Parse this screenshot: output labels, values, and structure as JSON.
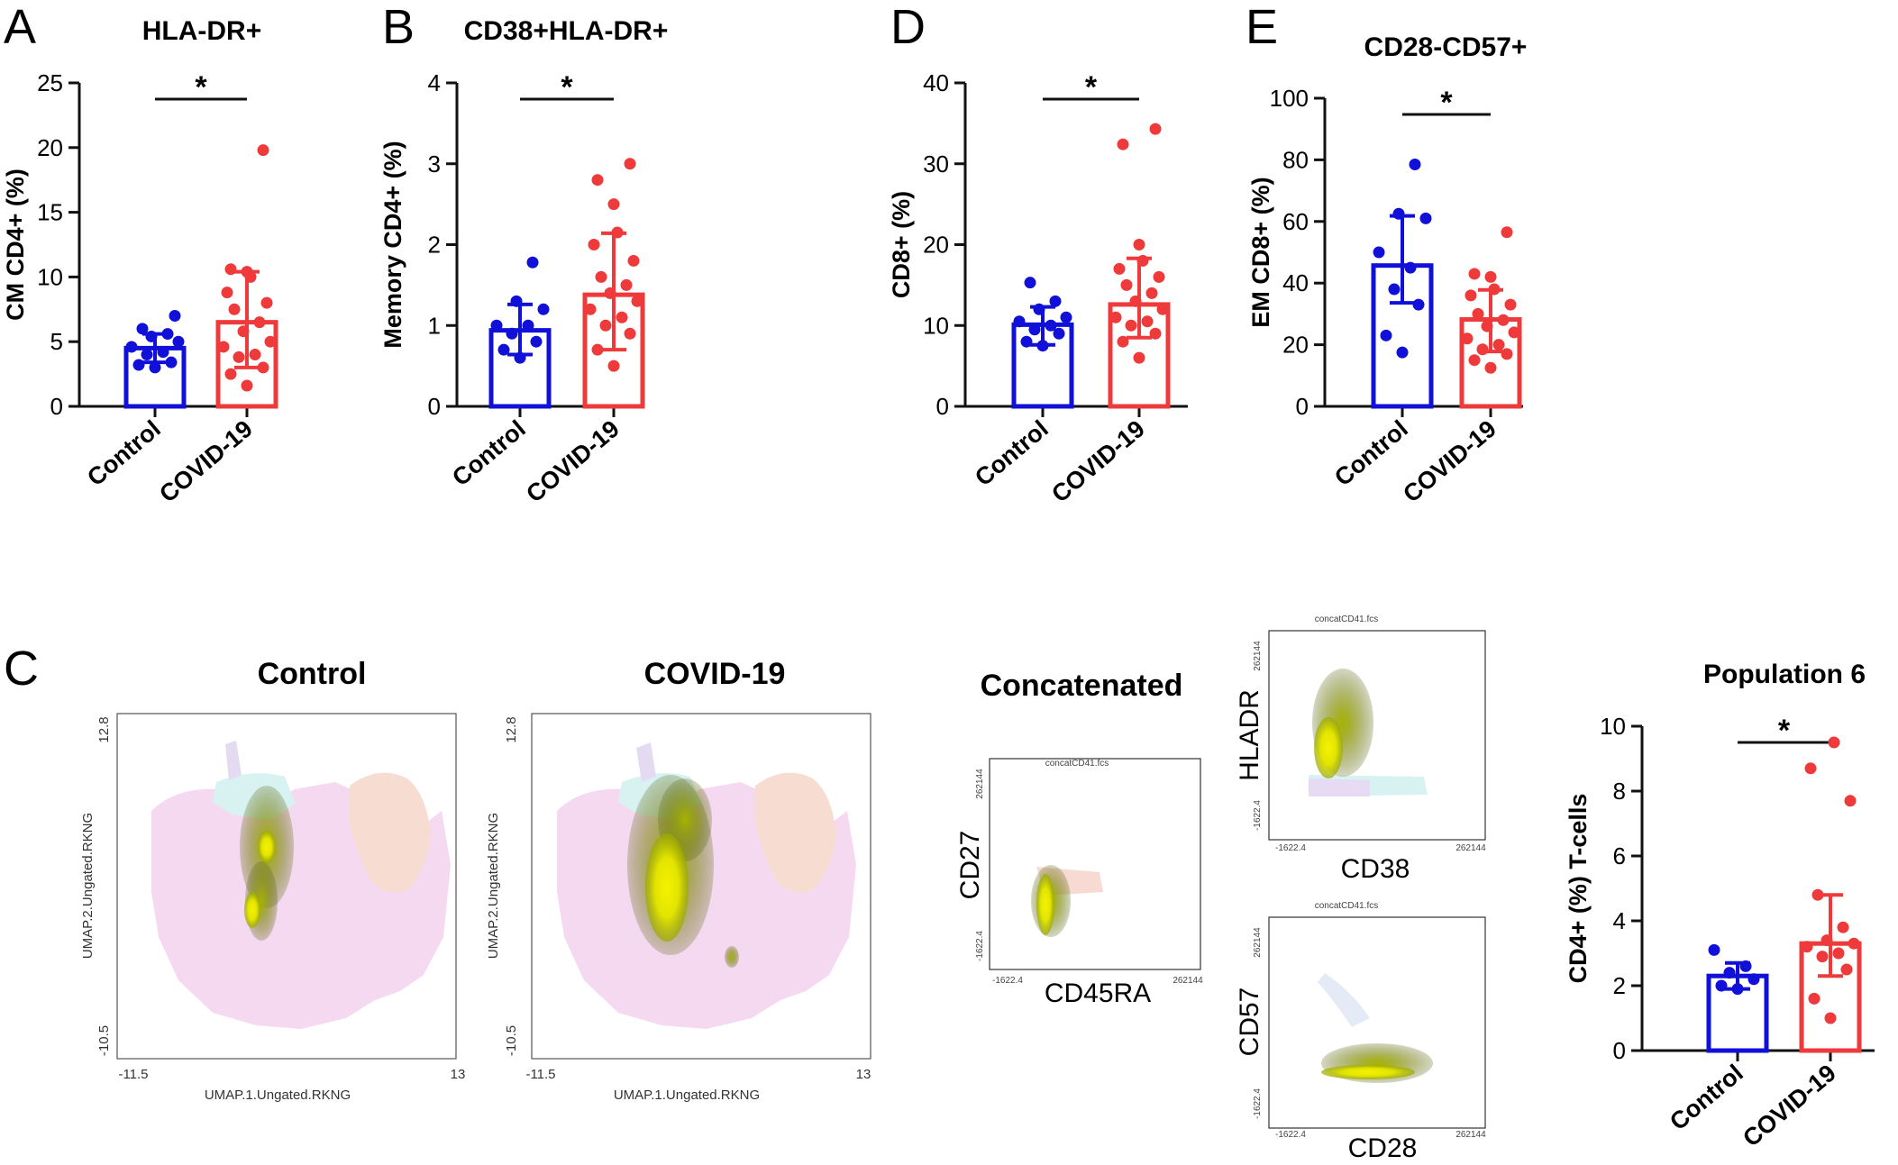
{
  "colors": {
    "control": "#1010d8",
    "covid": "#ee3a3a",
    "axis": "#111111",
    "density_high": "#f4f000",
    "density_mid": "#b6c400",
    "density_low": "#4e5600",
    "bg_pink": "#f4d6ef",
    "bg_peach": "#f6d8cf",
    "bg_cyan": "#d6f2f2",
    "bg_lavender": "#e2d8f2"
  },
  "panel_letters": {
    "A": "A",
    "B": "B",
    "C": "C",
    "D": "D",
    "E": "E"
  },
  "chart_data": [
    {
      "id": "A",
      "type": "bar",
      "title": "HLA-DR+",
      "ylabel": "CM CD4+ (%)",
      "categories": [
        "Control",
        "COVID-19"
      ],
      "ylim": [
        0,
        25
      ],
      "yticks": [
        0,
        5,
        10,
        15,
        20,
        25
      ],
      "significance": "*",
      "series": [
        {
          "name": "Control",
          "mean": 4.5,
          "err": [
            3.4,
            5.6
          ],
          "points": [
            3.0,
            3.2,
            3.4,
            4.0,
            4.2,
            4.6,
            5.0,
            5.4,
            5.6,
            6.0,
            7.0
          ]
        },
        {
          "name": "COVID-19",
          "mean": 6.5,
          "err": [
            3.0,
            10.4
          ],
          "points": [
            1.6,
            2.5,
            3.0,
            3.8,
            4.0,
            4.6,
            5.0,
            5.8,
            6.5,
            7.5,
            8.0,
            8.8,
            10.0,
            10.4,
            10.6,
            19.8
          ]
        }
      ]
    },
    {
      "id": "B",
      "type": "bar",
      "title": "CD38+HLA-DR+",
      "ylabel": "Memory CD4+ (%)",
      "categories": [
        "Control",
        "COVID-19"
      ],
      "ylim": [
        0,
        4
      ],
      "yticks": [
        0,
        1,
        2,
        3,
        4
      ],
      "significance": "*",
      "series": [
        {
          "name": "Control",
          "mean": 0.94,
          "err": [
            0.64,
            1.26
          ],
          "points": [
            0.6,
            0.7,
            0.8,
            0.9,
            1.0,
            1.0,
            1.2,
            1.3,
            1.78
          ]
        },
        {
          "name": "COVID-19",
          "mean": 1.38,
          "err": [
            0.7,
            2.14
          ],
          "points": [
            0.5,
            0.7,
            0.9,
            1.0,
            1.1,
            1.2,
            1.3,
            1.4,
            1.5,
            1.6,
            1.8,
            2.0,
            2.15,
            2.5,
            2.8,
            3.0
          ]
        }
      ]
    },
    {
      "id": "D",
      "type": "bar",
      "title": "",
      "ylabel": "CD8+ (%)",
      "categories": [
        "Control",
        "COVID-19"
      ],
      "ylim": [
        0,
        40
      ],
      "yticks": [
        0,
        10,
        20,
        30,
        40
      ],
      "significance": "*",
      "series": [
        {
          "name": "Control",
          "mean": 10.1,
          "err": [
            7.6,
            12.3
          ],
          "points": [
            7.5,
            8.0,
            9.0,
            9.5,
            10.0,
            10.5,
            11.0,
            12.0,
            13.0,
            15.3
          ]
        },
        {
          "name": "COVID-19",
          "mean": 12.6,
          "err": [
            8.5,
            18.3
          ],
          "points": [
            6.0,
            8.0,
            9.0,
            10.0,
            10.5,
            11.0,
            12.0,
            13.0,
            14.0,
            15.0,
            16.0,
            17.0,
            18.0,
            20.0,
            32.4,
            34.3
          ]
        }
      ]
    },
    {
      "id": "E",
      "type": "bar",
      "title": "CD28-CD57+",
      "ylabel": "EM CD8+ (%)",
      "categories": [
        "Control",
        "COVID-19"
      ],
      "ylim": [
        0,
        100
      ],
      "yticks": [
        0,
        20,
        40,
        60,
        80,
        100
      ],
      "significance": "*",
      "series": [
        {
          "name": "Control",
          "mean": 45.7,
          "err": [
            33.6,
            61.8
          ],
          "points": [
            17.5,
            23.0,
            33.0,
            38.0,
            45.0,
            50.0,
            61.0,
            62.5,
            78.5
          ]
        },
        {
          "name": "COVID-19",
          "mean": 28.2,
          "err": [
            17.8,
            37.8
          ],
          "points": [
            12.5,
            15.0,
            17.0,
            18.5,
            20.0,
            22.0,
            24.0,
            26.0,
            28.0,
            30.0,
            33.0,
            36.0,
            38.0,
            42.0,
            43.0,
            56.5
          ]
        }
      ]
    },
    {
      "id": "P6",
      "type": "bar",
      "title": "Population 6",
      "ylabel": "CD4+  (%) T-cells",
      "categories": [
        "Control",
        "COVID-19"
      ],
      "ylim": [
        0,
        10
      ],
      "yticks": [
        0,
        2,
        4,
        6,
        8,
        10
      ],
      "significance": "*",
      "series": [
        {
          "name": "Control",
          "mean": 2.3,
          "err": [
            1.9,
            2.7
          ],
          "points": [
            1.9,
            2.0,
            2.2,
            2.4,
            2.6,
            3.1
          ]
        },
        {
          "name": "COVID-19",
          "mean": 3.3,
          "err": [
            2.3,
            4.8
          ],
          "points": [
            1.0,
            1.6,
            2.5,
            2.9,
            3.0,
            3.2,
            3.3,
            3.4,
            3.8,
            4.8,
            7.7,
            8.7,
            9.5
          ]
        }
      ]
    }
  ],
  "umap": {
    "panel_titles": [
      "Control",
      "COVID-19"
    ],
    "xlabel": "UMAP.1.Ungated.RKNG",
    "ylabel": "UMAP.2.Ungated.RKNG",
    "xmin_label": "-11.5",
    "xmax_label": "13",
    "ymin_label": "-10.5",
    "ymax_label": "12.8"
  },
  "flow": {
    "title": "Concatenated",
    "file_label": "concatCD41.fcs",
    "min_label": "-1622.4",
    "max_label": "262144",
    "plots": [
      {
        "x": "CD45RA",
        "y": "CD27"
      },
      {
        "x": "CD38",
        "y": "HLADR"
      },
      {
        "x": "CD28",
        "y": "CD57"
      }
    ]
  }
}
